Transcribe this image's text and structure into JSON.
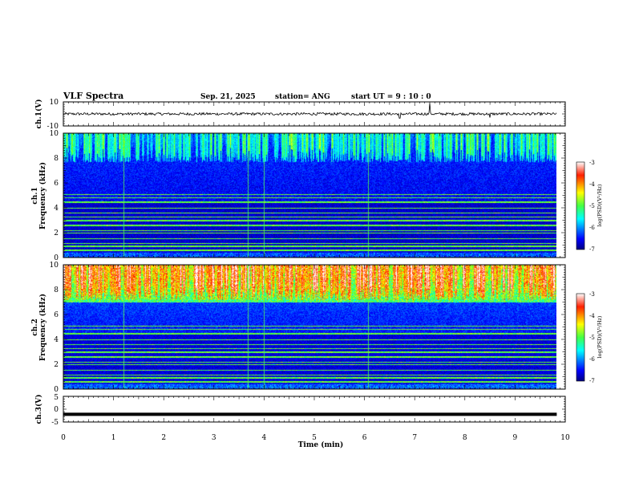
{
  "header": {
    "title": "VLF Spectra",
    "date": "Sep. 21, 2025",
    "station": "station= ANG",
    "start": "start  UT  =   9  : 10 : 0"
  },
  "colors": {
    "frame": "#000000",
    "trace": "#000000",
    "spectrogram_background": "#000080",
    "harmonic_line": "#44ff66"
  },
  "chart_data": [
    {
      "type": "line",
      "name": "ch1-waveform",
      "ylabel": "ch.1(V)",
      "ylim": [
        -10,
        10
      ],
      "yticks": [
        "10",
        "-10"
      ],
      "xlim": [
        0,
        10
      ],
      "baseline": 0,
      "notes": "noisy waveform around 0 V with spikes near t=7.3 min"
    },
    {
      "type": "heatmap",
      "name": "ch1-spectrogram",
      "channel_label": "ch.1",
      "ylabel": "Frequency (kHz)",
      "ylim": [
        0,
        10
      ],
      "yticks": [
        "0",
        "2",
        "4",
        "6",
        "8",
        "10"
      ],
      "xlim": [
        0,
        10
      ],
      "data_end_min": 9.83,
      "intensity": "moderate",
      "colorbar": {
        "label": "log(PSD)(V²/Hz)",
        "range": [
          -7,
          -3
        ],
        "ticks": [
          "-3",
          "-4",
          "-5",
          "-6",
          "-7"
        ]
      }
    },
    {
      "type": "heatmap",
      "name": "ch2-spectrogram",
      "channel_label": "ch.2",
      "ylabel": "Frequency (kHz)",
      "ylim": [
        0,
        10
      ],
      "yticks": [
        "0",
        "2",
        "4",
        "6",
        "8",
        "10"
      ],
      "xlim": [
        0,
        10
      ],
      "data_end_min": 9.83,
      "intensity": "high",
      "colorbar": {
        "label": "log(PSD)(V²/Hz)",
        "range": [
          -7,
          -3
        ],
        "ticks": [
          "-3",
          "-4",
          "-5",
          "-6",
          "-7"
        ]
      }
    },
    {
      "type": "line",
      "name": "ch3-waveform",
      "ylabel": "ch.3(V)",
      "ylim": [
        -5,
        5
      ],
      "yticks": [
        "5",
        "0",
        "-5"
      ],
      "xlim": [
        0,
        10
      ],
      "baseline": -2,
      "notes": "thick flat trace at about -2 V"
    }
  ],
  "xaxis": {
    "label": "Time (min)",
    "range": [
      0,
      10
    ],
    "ticks": [
      "0",
      "1",
      "2",
      "3",
      "4",
      "5",
      "6",
      "7",
      "8",
      "9",
      "10"
    ]
  }
}
